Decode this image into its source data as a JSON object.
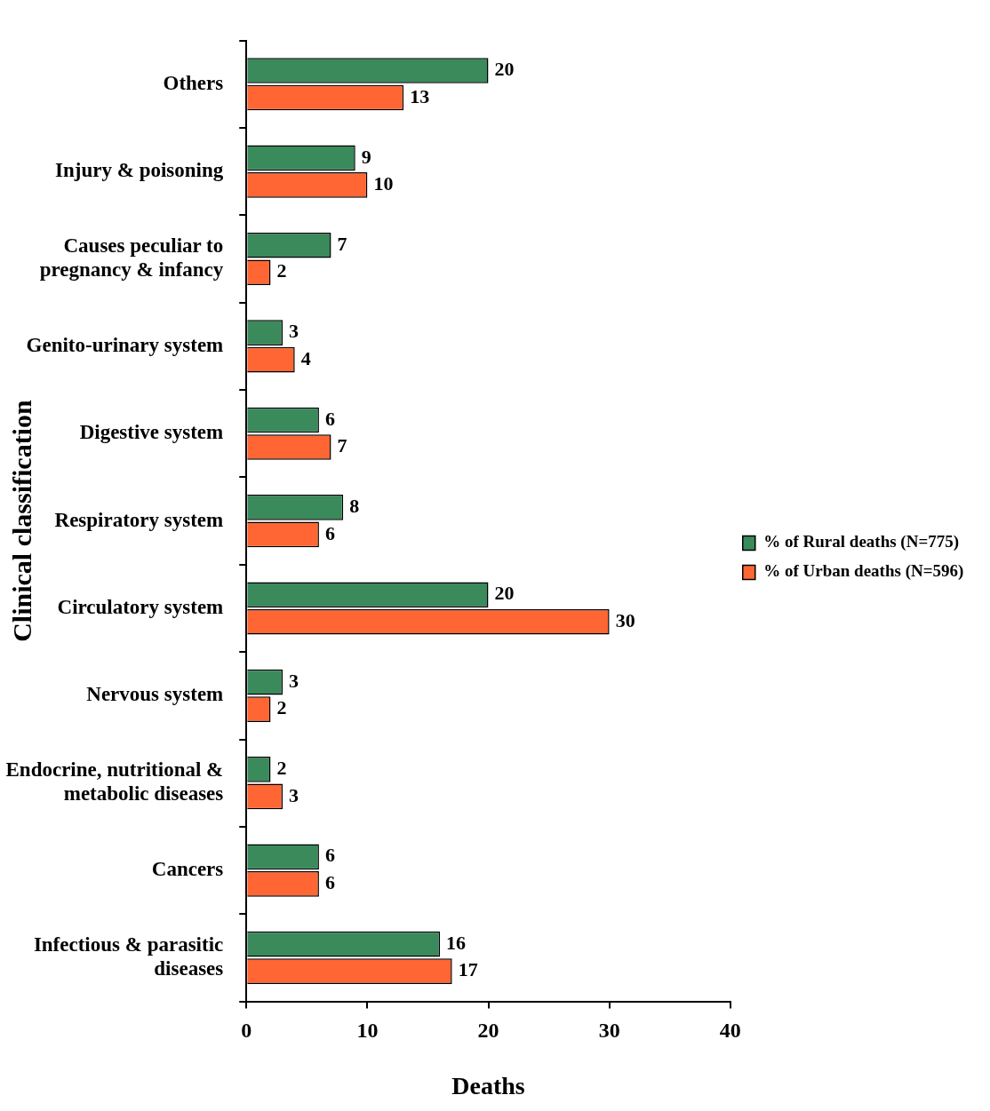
{
  "chart_data": {
    "type": "bar",
    "orientation": "horizontal",
    "xlabel": "Deaths",
    "ylabel": "Clinical classification",
    "categories": [
      "Others",
      "Injury & poisoning",
      "Causes peculiar to pregnancy & infancy",
      "Genito-urinary system",
      "Digestive system",
      "Respiratory system",
      "Circulatory system",
      "Nervous system",
      "Endocrine, nutritional & metabolic diseases",
      "Cancers",
      "Infectious & parasitic diseases"
    ],
    "series": [
      {
        "name": "% of Rural deaths (N=775)",
        "color": "#3a8a5c",
        "values": [
          20,
          9,
          7,
          3,
          6,
          8,
          20,
          3,
          2,
          6,
          16
        ]
      },
      {
        "name": "% of Urban deaths (N=596)",
        "color": "#ff6633",
        "values": [
          13,
          10,
          2,
          4,
          7,
          6,
          30,
          2,
          3,
          6,
          17
        ]
      }
    ],
    "xlim": [
      0,
      40
    ],
    "xticks": [
      0,
      10,
      20,
      30,
      40
    ],
    "data_labels": true,
    "grid": false,
    "legend": "right"
  }
}
